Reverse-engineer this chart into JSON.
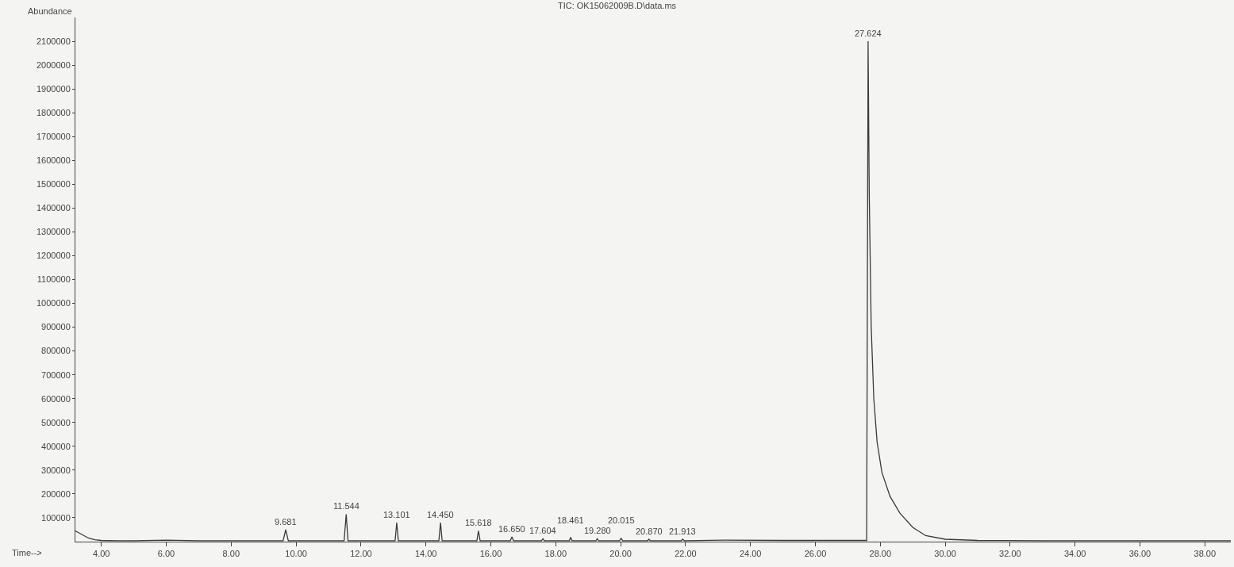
{
  "chart_data": {
    "type": "line",
    "title": "TIC: OK15062009B.D\\data.ms",
    "xlabel": "Time-->",
    "ylabel": "Abundance",
    "x": [
      3.2,
      3.4,
      3.6,
      3.8,
      4.0,
      4.5,
      5.0,
      6.0,
      7.0,
      8.0,
      9.0,
      9.6,
      9.681,
      9.76,
      11.48,
      11.544,
      11.6,
      13.05,
      13.101,
      13.15,
      14.4,
      14.45,
      14.5,
      15.57,
      15.618,
      15.67,
      16.6,
      16.65,
      16.7,
      17.56,
      17.604,
      17.65,
      18.42,
      18.461,
      18.5,
      19.24,
      19.28,
      19.32,
      19.97,
      20.015,
      20.06,
      20.83,
      20.87,
      20.91,
      21.87,
      21.913,
      21.96,
      23.2,
      25.0,
      27.0,
      27.58,
      27.624,
      27.66,
      27.72,
      27.8,
      27.9,
      28.05,
      28.3,
      28.6,
      29.0,
      29.4,
      30.0,
      31.0,
      33.0,
      36.0,
      38.8
    ],
    "series": [
      {
        "color": "#3a3a3a",
        "values": [
          45000,
          30000,
          15000,
          8000,
          5000,
          4000,
          4000,
          6000,
          4000,
          4000,
          4000,
          4000,
          50000,
          4000,
          4000,
          115000,
          4000,
          4000,
          80000,
          4000,
          4000,
          80000,
          4000,
          4000,
          45000,
          4000,
          4000,
          20000,
          4000,
          4000,
          12000,
          4000,
          4000,
          18000,
          4000,
          4000,
          12000,
          4000,
          4000,
          15000,
          4000,
          4000,
          10000,
          4000,
          4000,
          10000,
          4000,
          6000,
          5000,
          5000,
          5000,
          2100000,
          1450000,
          900000,
          600000,
          420000,
          290000,
          190000,
          120000,
          60000,
          25000,
          10000,
          5000,
          4000,
          4000,
          4000
        ]
      }
    ],
    "xlim": [
      3.2,
      38.8
    ],
    "xticks": [
      {
        "value": 4,
        "label": "4.00"
      },
      {
        "value": 6,
        "label": "6.00"
      },
      {
        "value": 8,
        "label": "8.00"
      },
      {
        "value": 10,
        "label": "10.00"
      },
      {
        "value": 12,
        "label": "12.00"
      },
      {
        "value": 14,
        "label": "14.00"
      },
      {
        "value": 16,
        "label": "16.00"
      },
      {
        "value": 18,
        "label": "18.00"
      },
      {
        "value": 20,
        "label": "20.00"
      },
      {
        "value": 22,
        "label": "22.00"
      },
      {
        "value": 24,
        "label": "24.00"
      },
      {
        "value": 26,
        "label": "26.00"
      },
      {
        "value": 28,
        "label": "28.00"
      },
      {
        "value": 30,
        "label": "30.00"
      },
      {
        "value": 32,
        "label": "32.00"
      },
      {
        "value": 34,
        "label": "34.00"
      },
      {
        "value": 36,
        "label": "36.00"
      },
      {
        "value": 38,
        "label": "38.00"
      }
    ],
    "ylim": [
      0,
      2200000
    ],
    "yticks": [
      100000,
      200000,
      300000,
      400000,
      500000,
      600000,
      700000,
      800000,
      900000,
      1000000,
      1100000,
      1200000,
      1300000,
      1400000,
      1500000,
      1600000,
      1700000,
      1800000,
      1900000,
      2000000,
      2100000
    ],
    "annotations": [
      {
        "text": "9.681",
        "x": 9.681,
        "y": 50000
      },
      {
        "text": "11.544",
        "x": 11.544,
        "y": 115000
      },
      {
        "text": "13.101",
        "x": 13.101,
        "y": 80000
      },
      {
        "text": "14.450",
        "x": 14.45,
        "y": 80000
      },
      {
        "text": "15.618",
        "x": 15.618,
        "y": 45000
      },
      {
        "text": "16.650",
        "x": 16.65,
        "y": 20000
      },
      {
        "text": "17.604",
        "x": 17.604,
        "y": 12000
      },
      {
        "text": "18.461",
        "x": 18.461,
        "y": 18000
      },
      {
        "text": "19.280",
        "x": 19.28,
        "y": 12000
      },
      {
        "text": "20.015",
        "x": 20.015,
        "y": 15000
      },
      {
        "text": "20.870",
        "x": 20.87,
        "y": 10000
      },
      {
        "text": "21.913",
        "x": 21.913,
        "y": 10000
      },
      {
        "text": "27.624",
        "x": 27.624,
        "y": 2100000
      }
    ],
    "grid": false,
    "marker": "none",
    "line_style": "solid"
  }
}
